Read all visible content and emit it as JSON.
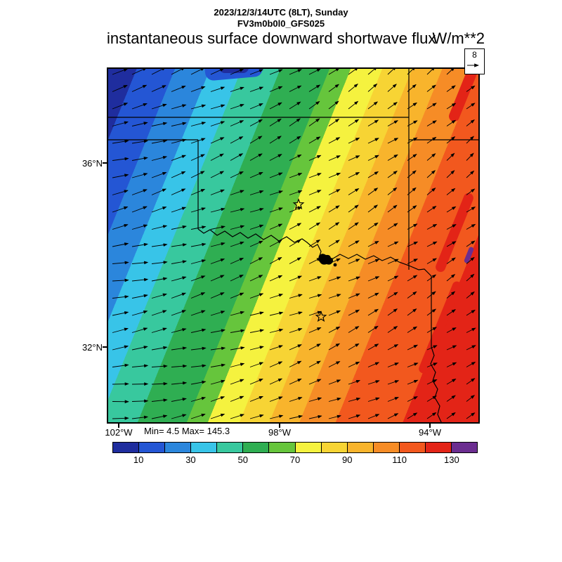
{
  "header": {
    "datetime_line": "2023/12/3/14UTC (8LT), Sunday",
    "model_line": "FV3m0b0l0_GFS025",
    "title": "instantaneous surface downward shortwave flux",
    "units": "W/m**2"
  },
  "axes": {
    "lat_labels": [
      {
        "text": "36°N"
      },
      {
        "text": "32°N"
      }
    ],
    "lon_labels": [
      {
        "text": "102°W"
      },
      {
        "text": "98°W"
      },
      {
        "text": "94°W"
      }
    ]
  },
  "stats_text": "Min= 4.5 Max= 145.3",
  "vector_reference": {
    "value": "8"
  },
  "colorbar": {
    "tick_labels": [
      "10",
      "30",
      "50",
      "70",
      "90",
      "110",
      "130"
    ]
  },
  "chart_data": {
    "type": "heatmap",
    "title": "instantaneous surface downward shortwave flux",
    "units": "W/m**2",
    "valid_time": "2023/12/3/14UTC (8LT), Sunday",
    "model": "FV3m0b0l0_GFS025",
    "min": 4.5,
    "max": 145.3,
    "contour_interval": 10,
    "contour_levels": [
      10,
      20,
      30,
      40,
      50,
      60,
      70,
      80,
      90,
      100,
      110,
      120,
      130
    ],
    "colorbar_tick_labels": [
      10,
      30,
      50,
      70,
      90,
      110,
      130
    ],
    "palette": [
      "#1f2d9e",
      "#2456d4",
      "#2b86dc",
      "#38c4e8",
      "#38c89e",
      "#2fae52",
      "#66c53c",
      "#f5f23f",
      "#f7d434",
      "#f8b42c",
      "#f68c26",
      "#f2581e",
      "#e32417",
      "#6b2d90"
    ],
    "lat_tick_labels": [
      "36°N",
      "32°N"
    ],
    "lon_tick_labels": [
      "102°W",
      "98°W",
      "94°W"
    ],
    "wind_vector_reference": 8,
    "region": "Oklahoma / north Texas (approx. 102°W-93°W, 30°N-38°N) with state borders and Red River",
    "pattern": "Shortwave flux increases from northwest (dark blue, ~5 W/m**2) to east/southeast (red, ~145 W/m**2) in diagonal SW-NE oriented contour bands; wind vectors point east, tilting northeast and shortening toward the east side; two star station markers and a small lake on the Red River are drawn"
  }
}
